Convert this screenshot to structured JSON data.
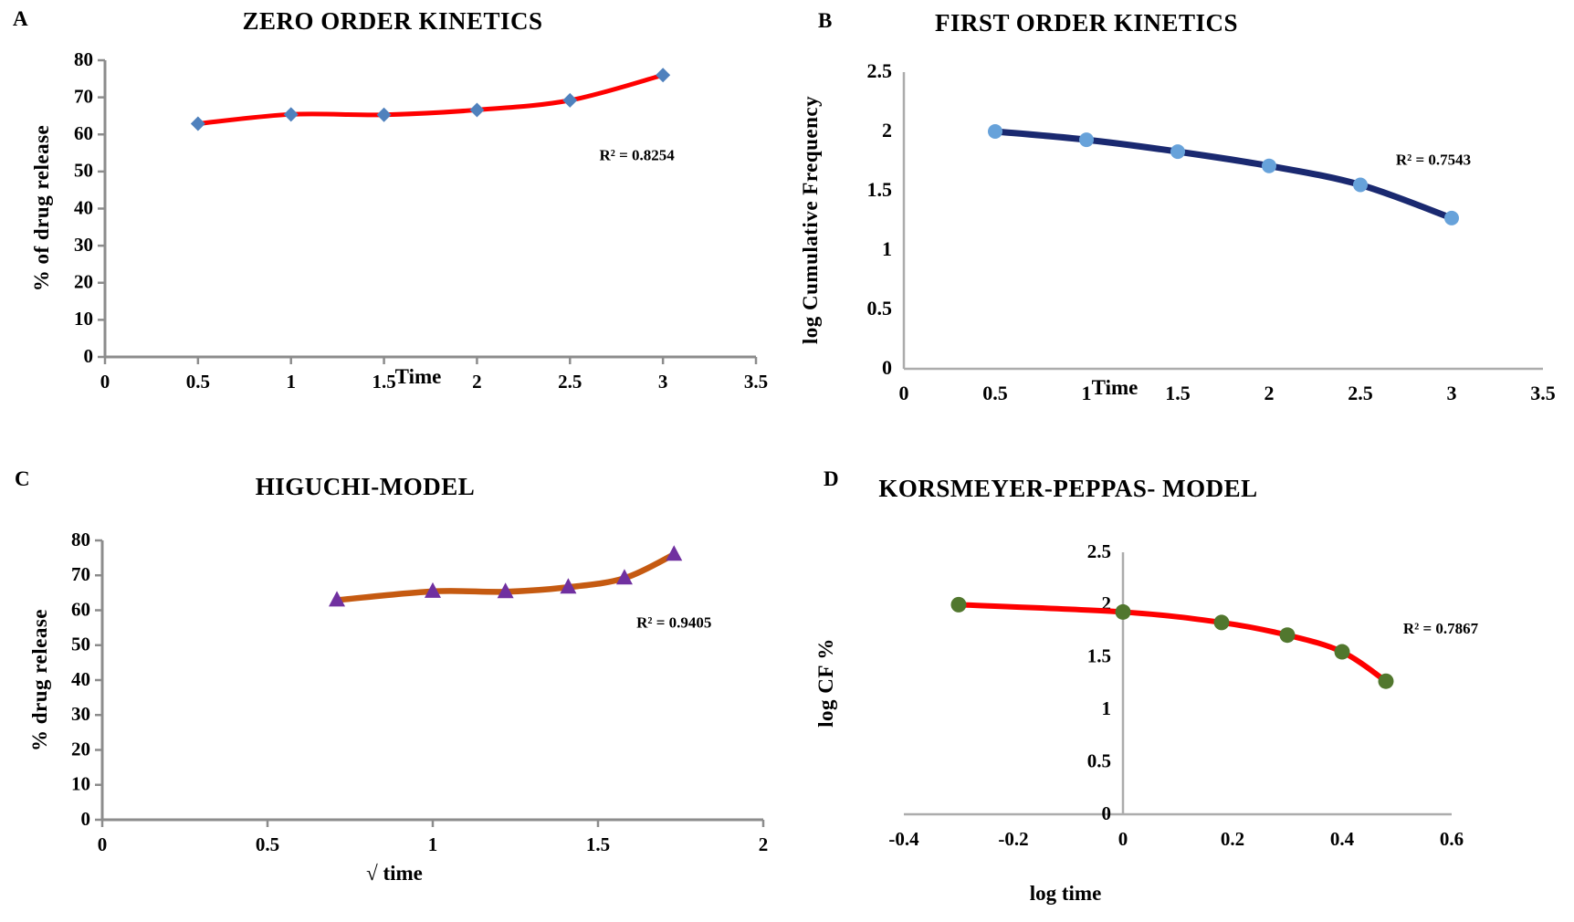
{
  "figure": {
    "background": "#FFFFFF",
    "text_color": "#000000"
  },
  "chart_data": [
    {
      "id": "zero-order-kinetics",
      "panel_letter": "A",
      "type": "line",
      "title": "ZERO ORDER KINETICS",
      "xlabel": "Time",
      "ylabel": "% of drug release",
      "annotation": "R² = 0.8254",
      "x": [
        0.5,
        1,
        1.5,
        2,
        2.5,
        3
      ],
      "y": [
        62.9,
        65.4,
        65.3,
        66.6,
        69.2,
        76
      ],
      "xlim": [
        0,
        3.5
      ],
      "ylim": [
        0,
        80
      ],
      "xtick_values": [
        0,
        0.5,
        1,
        1.5,
        2,
        2.5,
        3,
        3.5
      ],
      "xtick_labels": [
        "0",
        "0.5",
        "1",
        "1.5",
        "2",
        "2.5",
        "3",
        "3.5"
      ],
      "ytick_values": [
        0,
        10,
        20,
        30,
        40,
        50,
        60,
        70,
        80
      ],
      "ytick_labels": [
        "0",
        "10",
        "20",
        "30",
        "40",
        "50",
        "60",
        "70",
        "80"
      ],
      "marker": "diamond",
      "colors": {
        "line": "#FE0000",
        "marker": "#4F81BD",
        "axis": "#8C8C8C"
      },
      "grid": false,
      "legend": "none",
      "smooth": true
    },
    {
      "id": "first-order-kinetics",
      "panel_letter": "B",
      "type": "line",
      "title": "FIRST ORDER KINETICS",
      "xlabel": "Time",
      "ylabel": "log Cumulative Frequency",
      "annotation": "R² = 0.7543",
      "x": [
        0.5,
        1,
        1.5,
        2,
        2.5,
        3
      ],
      "y": [
        2.0,
        1.93,
        1.83,
        1.71,
        1.55,
        1.27
      ],
      "xlim": [
        0,
        3.5
      ],
      "ylim": [
        0,
        2.5
      ],
      "xtick_values": [
        0,
        0.5,
        1,
        1.5,
        2,
        2.5,
        3,
        3.5
      ],
      "xtick_labels": [
        "0",
        "0.5",
        "1",
        "1.5",
        "2",
        "2.5",
        "3",
        "3.5"
      ],
      "ytick_values": [
        0,
        0.5,
        1,
        1.5,
        2,
        2.5
      ],
      "ytick_labels": [
        "0",
        "0.5",
        "1",
        "1.5",
        "2",
        "2.5"
      ],
      "marker": "circle",
      "colors": {
        "line": "#1A2970",
        "marker": "#67A2DA",
        "axis": "#ACACAC"
      },
      "grid": false,
      "legend": "none",
      "smooth": true
    },
    {
      "id": "higuchi-model",
      "panel_letter": "C",
      "type": "line",
      "title": "HIGUCHI-MODEL",
      "xlabel": "√ time",
      "ylabel": "% drug release",
      "annotation": "R² = 0.9405",
      "x": [
        0.71,
        1,
        1.22,
        1.41,
        1.58,
        1.73
      ],
      "y": [
        62.9,
        65.4,
        65.3,
        66.6,
        69.2,
        76
      ],
      "xlim": [
        0,
        2
      ],
      "ylim": [
        0,
        80
      ],
      "xtick_values": [
        0,
        0.5,
        1,
        1.5,
        2
      ],
      "xtick_labels": [
        "0",
        "0.5",
        "1",
        "1.5",
        "2"
      ],
      "ytick_values": [
        0,
        10,
        20,
        30,
        40,
        50,
        60,
        70,
        80
      ],
      "ytick_labels": [
        "0",
        "10",
        "20",
        "30",
        "40",
        "50",
        "60",
        "70",
        "80"
      ],
      "marker": "triangle",
      "colors": {
        "line": "#C55A11",
        "marker": "#7030A0",
        "axis": "#8C8C8C"
      },
      "grid": false,
      "legend": "none",
      "smooth": true
    },
    {
      "id": "korsmeyer-peppas-model",
      "panel_letter": "D",
      "type": "line",
      "title": "KORSMEYER-PEPPAS- MODEL",
      "xlabel": "log time",
      "ylabel": "log CF %",
      "annotation": "R² = 0.7867",
      "x": [
        -0.3,
        0,
        0.18,
        0.3,
        0.4,
        0.48
      ],
      "y": [
        2.0,
        1.93,
        1.83,
        1.71,
        1.55,
        1.27
      ],
      "xlim": [
        -0.4,
        0.6
      ],
      "ylim": [
        0,
        2.5
      ],
      "xtick_values": [
        -0.4,
        -0.2,
        0,
        0.2,
        0.4,
        0.6
      ],
      "xtick_labels": [
        "-0.4",
        "-0.2",
        "0",
        "0.2",
        "0.4",
        "0.6"
      ],
      "ytick_values": [
        0,
        0.5,
        1,
        1.5,
        2,
        2.5
      ],
      "ytick_labels": [
        "0",
        "0.5",
        "1",
        "1.5",
        "2",
        "2.5"
      ],
      "marker": "circle",
      "colors": {
        "line": "#FE0000",
        "marker": "#51772E",
        "axis": "#ACACAC"
      },
      "grid": false,
      "legend": "none",
      "smooth": true
    }
  ]
}
